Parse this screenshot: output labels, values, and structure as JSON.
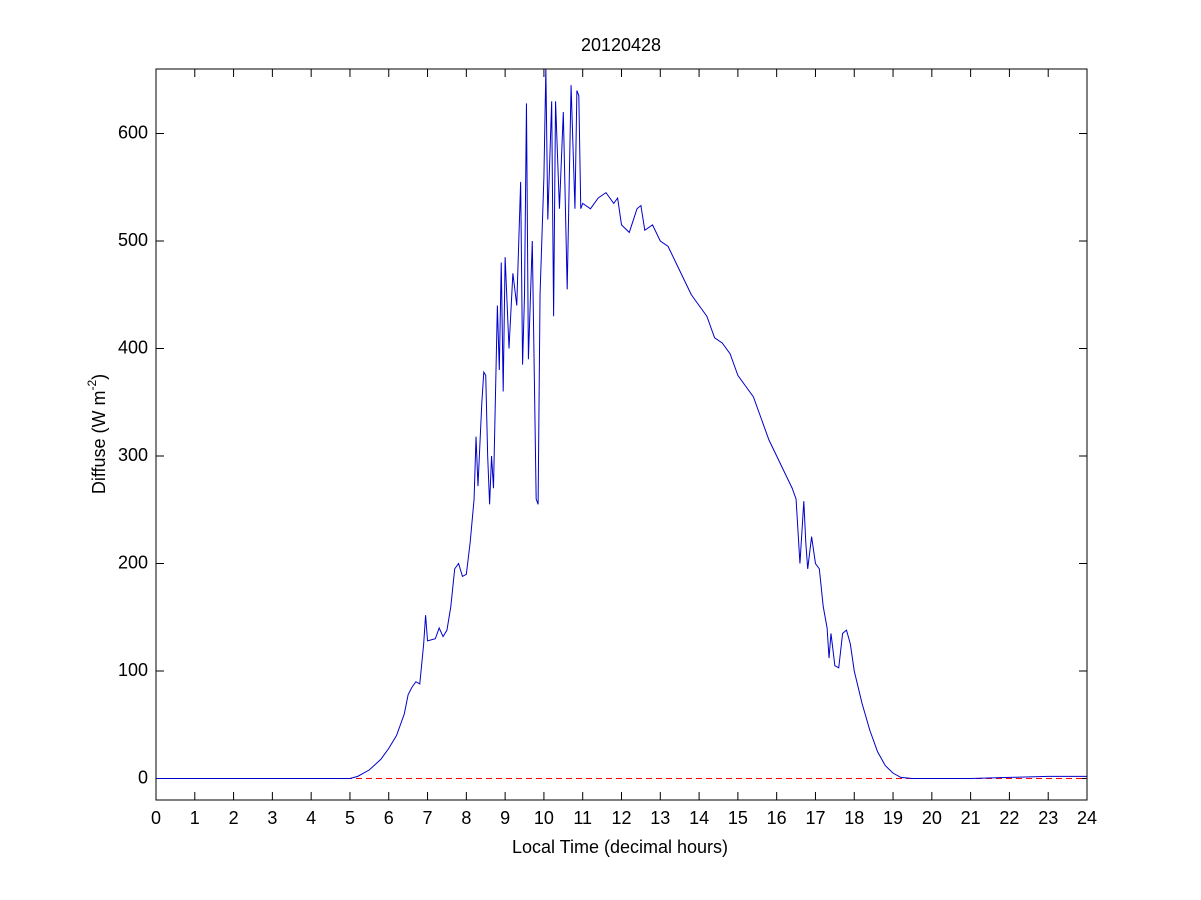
{
  "chart_data": {
    "type": "line",
    "title": "20120428",
    "xlabel": "Local Time (decimal hours)",
    "ylabel": {
      "text": "Diffuse (W m",
      "superscript": "-2",
      "suffix": ")"
    },
    "xlim": [
      0,
      24
    ],
    "ylim": [
      -20,
      660
    ],
    "xticks": [
      0,
      1,
      2,
      3,
      4,
      5,
      6,
      7,
      8,
      9,
      10,
      11,
      12,
      13,
      14,
      15,
      16,
      17,
      18,
      19,
      20,
      21,
      22,
      23,
      24
    ],
    "yticks": [
      0,
      100,
      200,
      300,
      400,
      500,
      600
    ],
    "grid": false,
    "x": [
      0,
      1,
      2,
      3,
      4,
      5,
      5.2,
      5.5,
      5.8,
      6.0,
      6.2,
      6.4,
      6.5,
      6.6,
      6.7,
      6.8,
      6.9,
      6.95,
      7.0,
      7.2,
      7.3,
      7.4,
      7.5,
      7.6,
      7.7,
      7.8,
      7.9,
      8.0,
      8.1,
      8.2,
      8.25,
      8.3,
      8.4,
      8.45,
      8.5,
      8.55,
      8.6,
      8.65,
      8.7,
      8.8,
      8.85,
      8.9,
      8.95,
      9.0,
      9.1,
      9.2,
      9.3,
      9.4,
      9.45,
      9.5,
      9.55,
      9.6,
      9.7,
      9.8,
      9.85,
      9.9,
      10.0,
      10.05,
      10.1,
      10.2,
      10.25,
      10.3,
      10.4,
      10.5,
      10.6,
      10.7,
      10.8,
      10.85,
      10.9,
      10.95,
      11.0,
      11.2,
      11.4,
      11.6,
      11.8,
      11.9,
      12.0,
      12.2,
      12.4,
      12.5,
      12.6,
      12.8,
      13.0,
      13.2,
      13.4,
      13.6,
      13.8,
      14.0,
      14.2,
      14.4,
      14.6,
      14.8,
      15.0,
      15.2,
      15.4,
      15.6,
      15.8,
      16.0,
      16.2,
      16.4,
      16.5,
      16.6,
      16.7,
      16.75,
      16.8,
      16.9,
      17.0,
      17.1,
      17.2,
      17.3,
      17.35,
      17.4,
      17.5,
      17.6,
      17.7,
      17.8,
      17.9,
      18.0,
      18.2,
      18.4,
      18.6,
      18.8,
      19.0,
      19.2,
      19.5,
      20,
      21,
      22,
      23,
      24
    ],
    "series": [
      {
        "color": "#0000cc",
        "values": [
          0,
          0,
          0,
          0,
          0,
          0,
          2,
          8,
          18,
          28,
          40,
          60,
          78,
          85,
          90,
          88,
          125,
          152,
          128,
          130,
          140,
          132,
          138,
          160,
          195,
          200,
          188,
          190,
          220,
          260,
          318,
          272,
          350,
          378,
          375,
          300,
          255,
          300,
          270,
          440,
          380,
          480,
          360,
          485,
          400,
          470,
          440,
          555,
          385,
          450,
          628,
          390,
          500,
          260,
          255,
          450,
          560,
          660,
          520,
          630,
          430,
          630,
          530,
          620,
          455,
          645,
          530,
          640,
          635,
          530,
          535,
          530,
          540,
          545,
          535,
          540,
          515,
          508,
          530,
          533,
          510,
          515,
          500,
          495,
          480,
          465,
          450,
          440,
          430,
          410,
          405,
          395,
          375,
          365,
          355,
          335,
          315,
          300,
          285,
          270,
          260,
          200,
          258,
          220,
          195,
          225,
          200,
          195,
          160,
          140,
          112,
          135,
          105,
          103,
          135,
          138,
          125,
          100,
          70,
          45,
          25,
          12,
          5,
          1,
          0,
          0,
          0,
          1,
          2,
          2
        ]
      }
    ],
    "hline": {
      "y": 0,
      "color": "#ff0000",
      "style": "dashed"
    }
  }
}
